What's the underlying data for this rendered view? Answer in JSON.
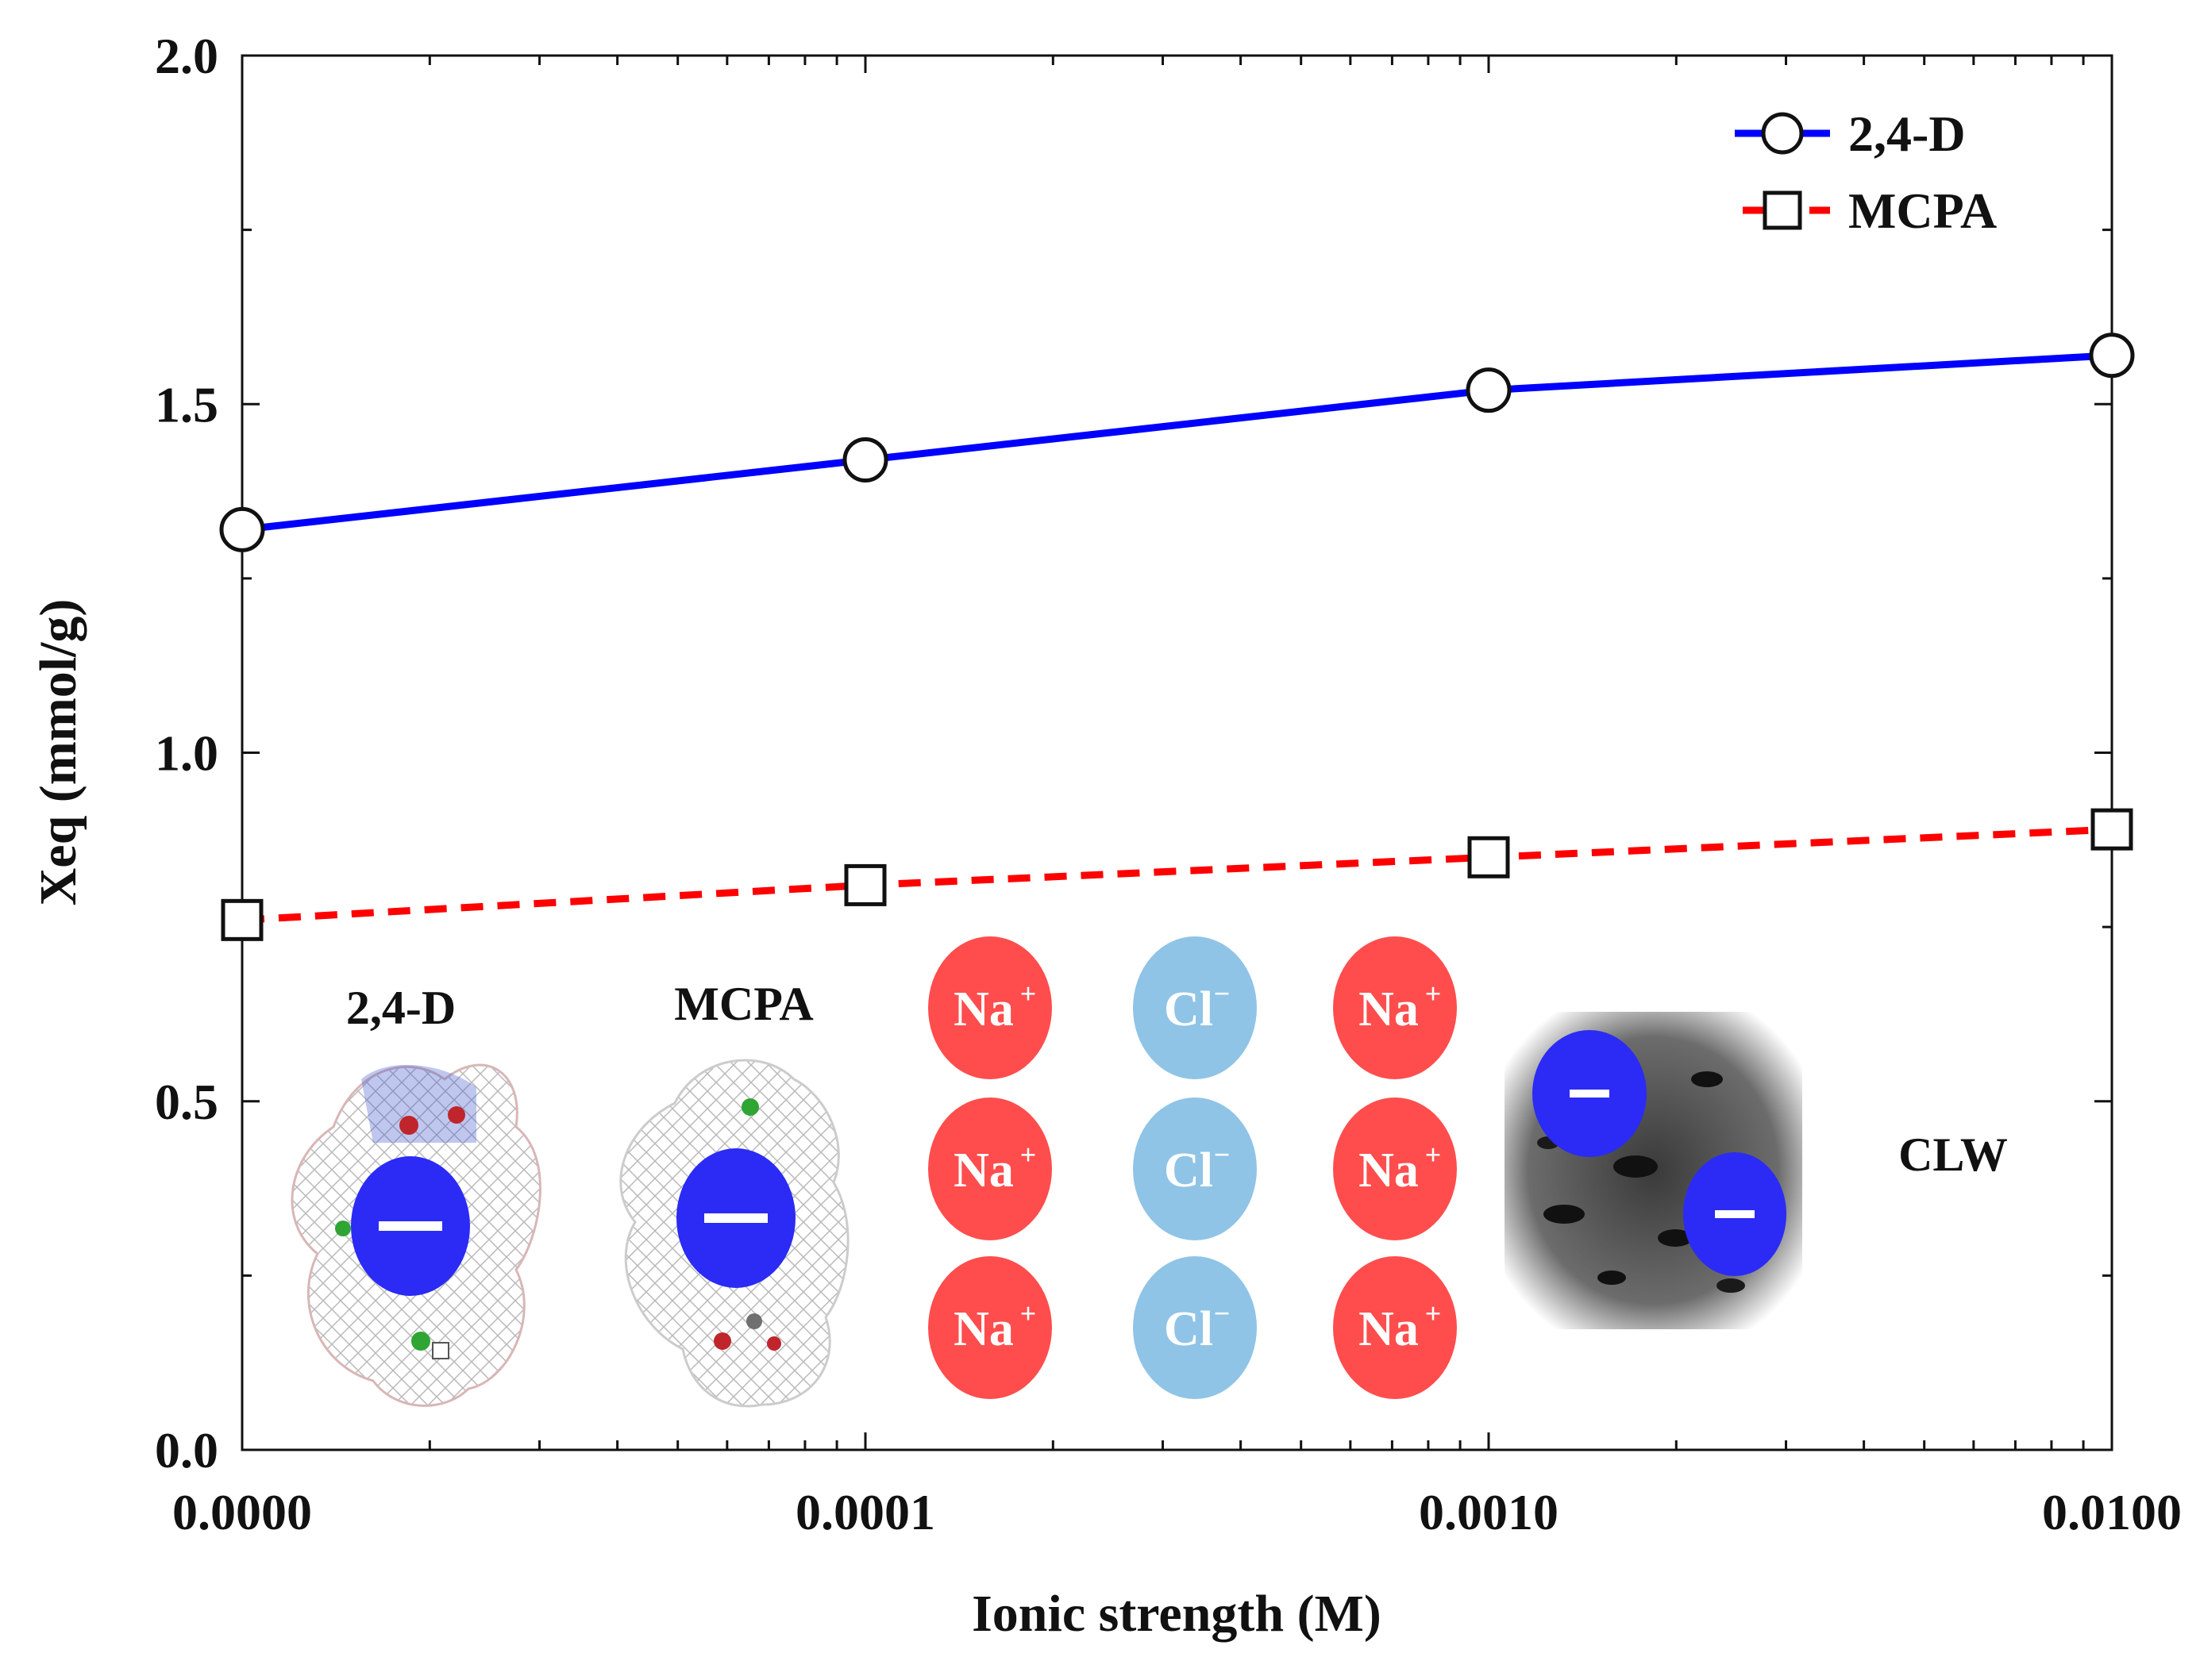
{
  "chart_data": {
    "type": "line",
    "title": "",
    "xlabel": "Ionic strength (M)",
    "ylabel": "Xeq (mmol/g)",
    "categories": [
      "0.0000",
      "0.0001",
      "0.0010",
      "0.0100"
    ],
    "ylim": [
      0,
      2.0
    ],
    "yticks": [
      "0.0",
      "0.5",
      "1.0",
      "1.5",
      "2.0"
    ],
    "series": [
      {
        "name": "2,4-D",
        "values": [
          1.32,
          1.42,
          1.52,
          1.57
        ],
        "color": "#0000ff",
        "marker": "circle",
        "line": "solid"
      },
      {
        "name": "MCPA",
        "values": [
          0.76,
          0.81,
          0.85,
          0.89
        ],
        "color": "#ff0000",
        "marker": "square",
        "line": "dashed"
      }
    ],
    "legend_position": "top-right",
    "grid": false,
    "inset": {
      "molecule_labels": [
        "2,4-D",
        "MCPA"
      ],
      "ions": {
        "cation": "Na",
        "cation_charge": "+",
        "anion": "Cl",
        "anion_charge": "−"
      },
      "adsorbent_label": "CLW",
      "colors": {
        "cation": "#ff4d4d",
        "anion": "#8fc4e6",
        "anion_herbicide": "#2b2bf5"
      }
    }
  }
}
